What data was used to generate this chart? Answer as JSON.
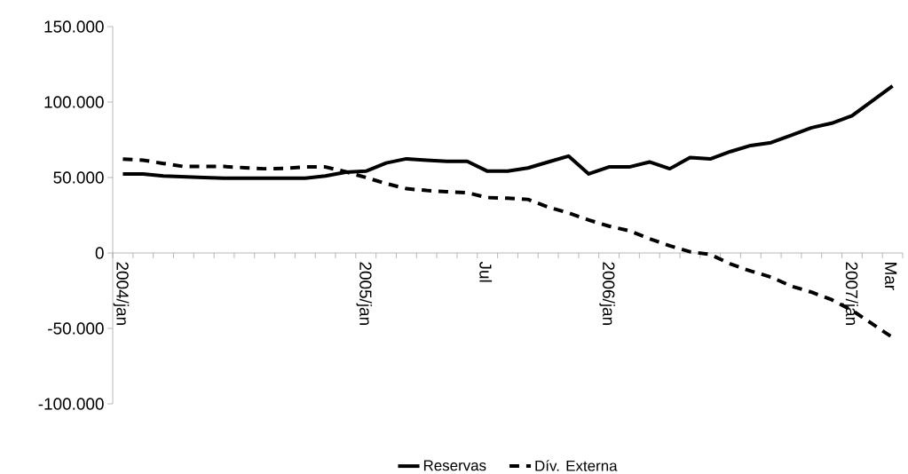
{
  "chart_data": {
    "type": "line",
    "categories": [
      "2004/jan",
      null,
      null,
      null,
      null,
      null,
      null,
      null,
      null,
      null,
      null,
      null,
      "2005/jan",
      null,
      null,
      null,
      null,
      null,
      "Jul",
      null,
      null,
      null,
      null,
      null,
      "2006/jan",
      null,
      null,
      null,
      null,
      null,
      null,
      null,
      null,
      null,
      null,
      null,
      "2007/jan",
      null,
      "Mar"
    ],
    "series": [
      {
        "name": "Reservas",
        "color": "#000000",
        "line_style": "solid",
        "values": [
          52400,
          52400,
          51000,
          50500,
          50000,
          49500,
          49500,
          49500,
          49500,
          49500,
          51000,
          53500,
          54200,
          59600,
          62400,
          61500,
          60700,
          60700,
          54200,
          54300,
          56300,
          60300,
          64200,
          52400,
          57000,
          57000,
          60300,
          55800,
          63200,
          62300,
          67200,
          71200,
          73100,
          78000,
          83000,
          86000,
          90900,
          100800,
          110700
        ]
      },
      {
        "name": "Dív. Externa",
        "color": "#000000",
        "line_style": "dashed",
        "values": [
          62200,
          61500,
          59300,
          57300,
          57300,
          57300,
          56500,
          55800,
          56000,
          57000,
          57000,
          53800,
          50000,
          46000,
          42600,
          41400,
          40600,
          39900,
          36700,
          36300,
          35500,
          30400,
          26500,
          21800,
          17800,
          14700,
          9400,
          4800,
          800,
          -1000,
          -7300,
          -12000,
          -16000,
          -22000,
          -26000,
          -31000,
          -38000,
          -47000,
          -56000
        ]
      }
    ],
    "ylim": [
      -100000,
      150000
    ],
    "yticks": [
      {
        "value": -100000,
        "label": "-100.000"
      },
      {
        "value": -50000,
        "label": "-50.000"
      },
      0,
      {
        "value": 50000,
        "label": "50.000"
      },
      {
        "value": 100000,
        "label": "100.000"
      },
      {
        "value": 150000,
        "label": "150.000"
      }
    ],
    "legend": "bottom"
  }
}
